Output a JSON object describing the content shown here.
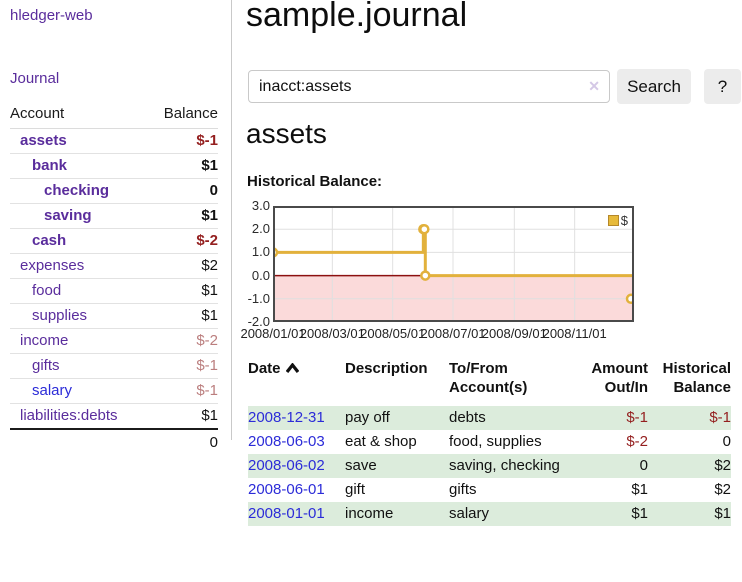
{
  "sidebar": {
    "app_title": "hledger-web",
    "journal_link": "Journal",
    "accounts_table": {
      "headers": {
        "account": "Account",
        "balance": "Balance"
      },
      "rows": [
        {
          "name": "assets",
          "balance": "$-1"
        },
        {
          "name": "bank",
          "balance": "$1"
        },
        {
          "name": "checking",
          "balance": "0"
        },
        {
          "name": "saving",
          "balance": "$1"
        },
        {
          "name": "cash",
          "balance": "$-2"
        },
        {
          "name": "expenses",
          "balance": "$2"
        },
        {
          "name": "food",
          "balance": "$1"
        },
        {
          "name": "supplies",
          "balance": "$1"
        },
        {
          "name": "income",
          "balance": "$-2"
        },
        {
          "name": "gifts",
          "balance": "$-1"
        },
        {
          "name": "salary",
          "balance": "$-1"
        },
        {
          "name": "liabilities:debts",
          "balance": "$1"
        }
      ],
      "total": "0"
    }
  },
  "main": {
    "title": "sample.journal",
    "search": {
      "value": "inacct:assets",
      "clear_icon": "✕",
      "button_label": "Search",
      "help_label": "?"
    },
    "account_heading": "assets",
    "section_label": "Historical Balance:"
  },
  "chart_data": {
    "type": "line",
    "step": true,
    "title": "Historical Balance:",
    "x_range": [
      "2008-01-01",
      "2008-12-31"
    ],
    "ylim": [
      -2,
      3
    ],
    "y_ticks": [
      "3.0",
      "2.0",
      "1.0",
      "0.0",
      "-1.0",
      "-2.0"
    ],
    "x_ticks": [
      {
        "date": "2008-01-01",
        "label": "2008/01/01"
      },
      {
        "date": "2008-03-01",
        "label": "2008/03/01"
      },
      {
        "date": "2008-05-01",
        "label": "2008/05/01"
      },
      {
        "date": "2008-07-01",
        "label": "2008/07/01"
      },
      {
        "date": "2008-09-01",
        "label": "2008/09/01"
      },
      {
        "date": "2008-11-01",
        "label": "2008/11/01"
      }
    ],
    "series": [
      {
        "name": "$",
        "color": "#e2b13c",
        "points": [
          [
            "2008-01-01",
            1
          ],
          [
            "2008-06-01",
            2
          ],
          [
            "2008-06-02",
            2
          ],
          [
            "2008-06-03",
            0
          ],
          [
            "2008-12-31",
            -1
          ]
        ]
      }
    ],
    "legend": {
      "label": "$",
      "position": "top-right"
    },
    "grid": true,
    "colors": {
      "grid": "#e0e0e0",
      "zero_line": "#8c1010",
      "negative_area": "#fbdada",
      "border": "#4a4a4a"
    }
  },
  "register": {
    "headers": [
      {
        "label": "Date",
        "sorted": "asc"
      },
      {
        "label": "Description"
      },
      {
        "label": "To/From Account(s)"
      },
      {
        "label": "Amount Out/In"
      },
      {
        "label": "Historical Balance"
      }
    ],
    "rows": [
      {
        "date": "2008-12-31",
        "description": "pay off",
        "accounts": "debts",
        "amount": "$-1",
        "balance": "$-1"
      },
      {
        "date": "2008-06-03",
        "description": "eat & shop",
        "accounts": "food, supplies",
        "amount": "$-2",
        "balance": "0"
      },
      {
        "date": "2008-06-02",
        "description": "save",
        "accounts": "saving, checking",
        "amount": "0",
        "balance": "$2"
      },
      {
        "date": "2008-06-01",
        "description": "gift",
        "accounts": "gifts",
        "amount": "$1",
        "balance": "$2"
      },
      {
        "date": "2008-01-01",
        "description": "income",
        "accounts": "salary",
        "amount": "$1",
        "balance": "$1"
      }
    ]
  }
}
